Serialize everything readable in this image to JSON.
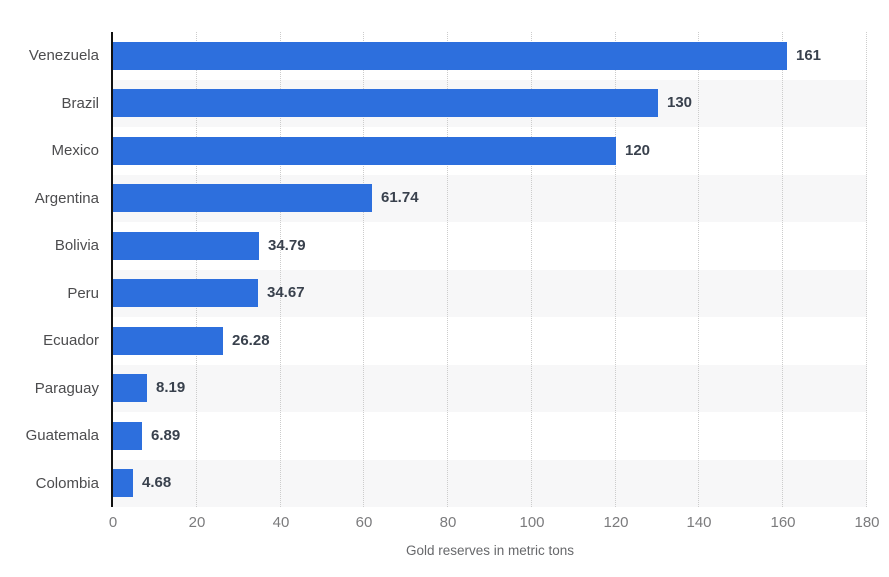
{
  "chart_data": {
    "type": "bar",
    "orientation": "horizontal",
    "xlabel": "Gold reserves in metric tons",
    "categories": [
      "Venezuela",
      "Brazil",
      "Mexico",
      "Argentina",
      "Bolivia",
      "Peru",
      "Ecuador",
      "Paraguay",
      "Guatemala",
      "Colombia"
    ],
    "values": [
      161,
      130,
      120,
      61.74,
      34.79,
      34.67,
      26.28,
      8.19,
      6.89,
      4.68
    ],
    "value_labels": [
      "161",
      "130",
      "120",
      "61.74",
      "34.79",
      "34.67",
      "26.28",
      "8.19",
      "6.89",
      "4.68"
    ],
    "xlim": [
      0,
      180
    ],
    "x_ticks": [
      0,
      20,
      40,
      60,
      80,
      100,
      120,
      140,
      160,
      180
    ],
    "grid": "vertical dotted gridlines at each x tick",
    "row_stripes": "every second category row shaded",
    "legend": "none",
    "colors": {
      "bar": "#2d6fdd",
      "value_label": "#39414d",
      "category_label": "#4c4c4e",
      "tick_label": "#7b7b7d",
      "axis_title": "#67686b",
      "axis_line": "#111111",
      "gridline": "#cccccc",
      "row_stripe": "#f7f7f8",
      "background": "#ffffff"
    }
  }
}
